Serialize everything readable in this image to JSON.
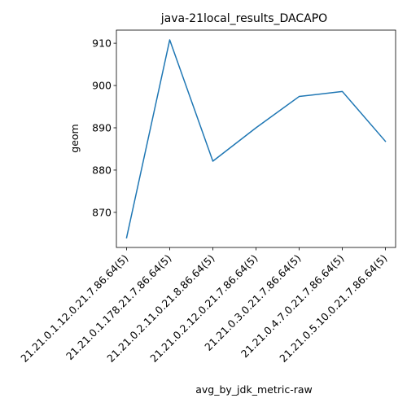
{
  "chart_data": {
    "type": "line",
    "title": "java-21local_results_DACAPO",
    "xlabel": "avg_by_jdk_metric-raw",
    "ylabel": "geom",
    "categories": [
      "21.21.0.1.12.0.21.7.86.64(5)",
      "21.21.0.1.178.21.7.86.64(5)",
      "21.21.0.2.11.0.21.8.86.64(5)",
      "21.21.0.2.12.0.21.7.86.64(5)",
      "21.21.0.3.0.21.7.86.64(5)",
      "21.21.0.4.7.0.21.7.86.64(5)",
      "21.21.0.5.10.0.21.7.86.64(5)"
    ],
    "series": [
      {
        "values": [
          864.0,
          910.8,
          882.1,
          890.0,
          897.4,
          898.6,
          886.8
        ],
        "color": "#1f77b4"
      }
    ],
    "ylim": [
      861.7,
      913.1
    ],
    "yticks": [
      870,
      880,
      890,
      900,
      910
    ],
    "grid": false
  }
}
